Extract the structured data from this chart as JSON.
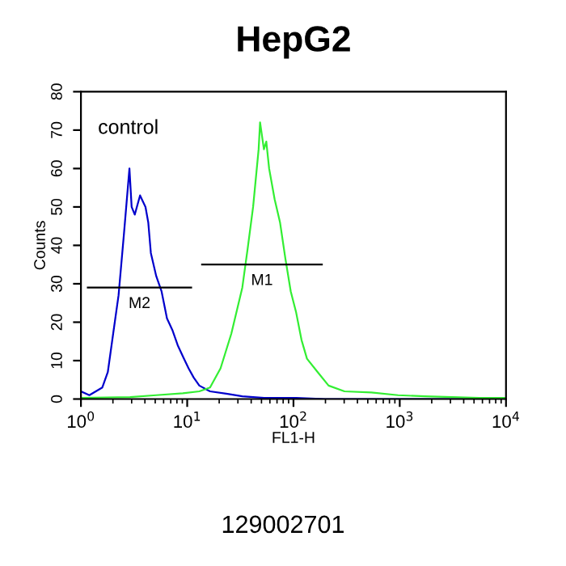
{
  "chart_data": {
    "type": "line",
    "title": "HepG2",
    "xlabel": "FL1-H",
    "ylabel": "Counts",
    "log": "x",
    "xlim": [
      1,
      10000
    ],
    "xticks": [
      {
        "value": 1,
        "label": "10$^{0}$"
      },
      {
        "value": 10,
        "label": "10$^{1}$"
      },
      {
        "value": 100,
        "label": "10$^{2}$"
      },
      {
        "value": 1000,
        "label": "10$^{3}$"
      },
      {
        "value": 10000,
        "label": "10$^{4}$"
      }
    ],
    "ylim": [
      0,
      80
    ],
    "yticks": [
      0,
      10,
      20,
      30,
      40,
      50,
      60,
      70,
      80
    ],
    "grid": false,
    "legend": false,
    "series": [
      {
        "color": "#0000cc",
        "x": [
          1,
          1.2,
          1.59,
          1.79,
          2.01,
          2.26,
          2.54,
          2.86,
          3.0,
          3.21,
          3.6,
          4.05,
          4.3,
          4.55,
          5.11,
          5.74,
          6.45,
          7.24,
          8.14,
          9.14,
          10.3,
          11.5,
          13,
          16.4,
          23.3,
          33,
          53,
          106,
          200,
          10000
        ],
        "values": [
          2,
          1,
          3,
          7,
          17,
          27,
          43,
          60,
          50,
          48,
          53,
          50,
          46,
          38,
          32,
          28,
          21,
          18,
          14,
          11,
          8,
          5.6,
          3.5,
          2,
          1.4,
          0.7,
          0.3,
          0.3,
          0,
          0
        ]
      },
      {
        "color": "#33ee33",
        "x": [
          1,
          2.9,
          5.1,
          9.1,
          13,
          16.4,
          20.6,
          26,
          33,
          37,
          41.7,
          47,
          48.5,
          52.7,
          55.5,
          59,
          66.5,
          74.7,
          84,
          94.3,
          106,
          119,
          134,
          169,
          214,
          302,
          540,
          964,
          1735,
          5600,
          10000
        ],
        "values": [
          0.3,
          0.5,
          1,
          1.5,
          2,
          3,
          8,
          17,
          29,
          39,
          50,
          65,
          72,
          65,
          67,
          60,
          52,
          46,
          36.5,
          28,
          22.5,
          15.4,
          10.5,
          7,
          3.5,
          2,
          1.7,
          1,
          0.7,
          0.3,
          0.3
        ]
      },
      {
        "type": "line",
        "name": "M2",
        "color": "#000000",
        "x": [
          1.16,
          10.9
        ],
        "values": [
          29,
          29
        ]
      },
      {
        "type": "line",
        "name": "M1",
        "color": "#000000",
        "x": [
          13.8,
          185
        ],
        "values": [
          35,
          35
        ]
      }
    ],
    "annotations": [
      "control",
      "129002701"
    ]
  }
}
